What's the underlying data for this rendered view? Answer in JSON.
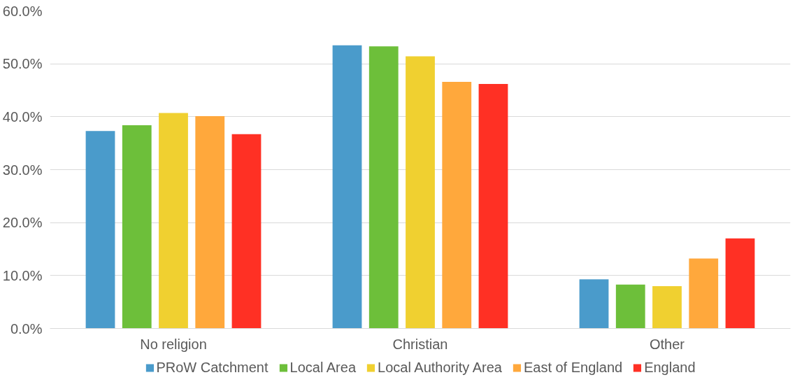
{
  "chart_data": {
    "type": "bar",
    "categories": [
      "No religion",
      "Christian",
      "Other"
    ],
    "series": [
      {
        "name": "PRoW Catchment",
        "color": "#4a9bcb",
        "values": [
          37.3,
          53.5,
          9.3
        ]
      },
      {
        "name": "Local Area",
        "color": "#6dbf3a",
        "values": [
          38.4,
          53.3,
          8.3
        ]
      },
      {
        "name": "Local Authority Area",
        "color": "#f0d030",
        "values": [
          40.7,
          51.4,
          8.0
        ]
      },
      {
        "name": "East of England",
        "color": "#ffa83c",
        "values": [
          40.1,
          46.6,
          13.2
        ]
      },
      {
        "name": "England",
        "color": "#ff3024",
        "values": [
          36.7,
          46.2,
          17.0
        ]
      }
    ],
    "ylim": [
      0,
      60
    ],
    "yticks": [
      {
        "value": 0,
        "label": "0.0%"
      },
      {
        "value": 10,
        "label": "10.0%"
      },
      {
        "value": 20,
        "label": "20.0%"
      },
      {
        "value": 30,
        "label": "30.0%"
      },
      {
        "value": 40,
        "label": "40.0%"
      },
      {
        "value": 50,
        "label": "50.0%"
      },
      {
        "value": 60,
        "label": "60.0%"
      }
    ],
    "grid": "y",
    "legend": "bottom"
  }
}
